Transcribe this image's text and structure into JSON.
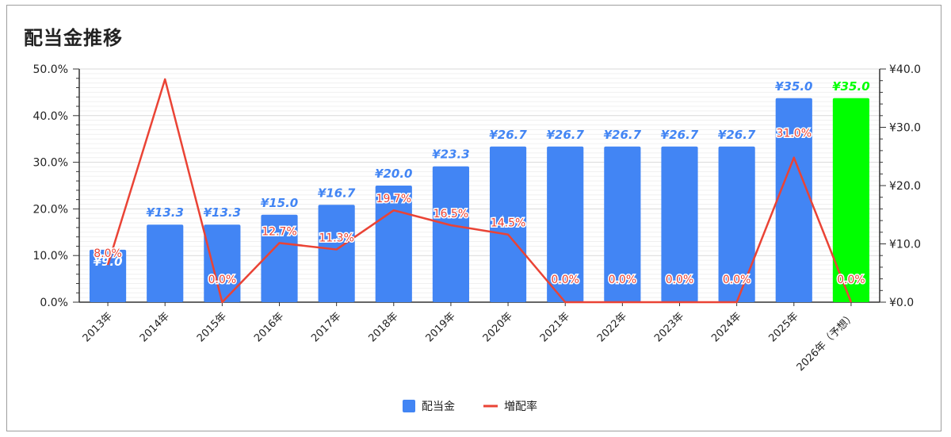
{
  "chart_data": {
    "type": "bar",
    "title": "配当金推移",
    "categories": [
      "2013年",
      "2014年",
      "2015年",
      "2016年",
      "2017年",
      "2018年",
      "2019年",
      "2020年",
      "2021年",
      "2022年",
      "2023年",
      "2024年",
      "2025年",
      "2026年（予想）"
    ],
    "series": [
      {
        "name": "配当金",
        "type": "bar",
        "axis": "right",
        "values": [
          9.0,
          13.3,
          13.3,
          15.0,
          16.7,
          20.0,
          23.3,
          26.7,
          26.7,
          26.7,
          26.7,
          26.7,
          35.0,
          35.0
        ],
        "labels": [
          "¥9.0",
          "¥13.3",
          "¥13.3",
          "¥15.0",
          "¥16.7",
          "¥20.0",
          "¥23.3",
          "¥26.7",
          "¥26.7",
          "¥26.7",
          "¥26.7",
          "¥26.7",
          "¥35.0",
          "¥35.0"
        ],
        "color": "#4285f4",
        "highlight_color": "#00ff00",
        "highlight_index": 13
      },
      {
        "name": "増配率",
        "type": "line",
        "axis": "left",
        "values": [
          8.0,
          47.8,
          0.0,
          12.7,
          11.3,
          19.7,
          16.5,
          14.5,
          0.0,
          0.0,
          0.0,
          0.0,
          31.0,
          0.0
        ],
        "labels": [
          "8.0%",
          "",
          "0.0%",
          "12.7%",
          "11.3%",
          "19.7%",
          "16.5%",
          "14.5%",
          "0.0%",
          "0.0%",
          "0.0%",
          "0.0%",
          "31.0%",
          "0.0%"
        ],
        "color": "#ea4335"
      }
    ],
    "left_axis": {
      "min": 0,
      "max": 50,
      "ticks": [
        "0.0%",
        "10.0%",
        "20.0%",
        "30.0%",
        "40.0%",
        "50.0%"
      ]
    },
    "right_axis": {
      "min": 0,
      "max": 40,
      "ticks": [
        "¥0.0",
        "¥10.0",
        "¥20.0",
        "¥30.0",
        "¥40.0"
      ]
    },
    "grid": true,
    "legend_position": "bottom"
  }
}
